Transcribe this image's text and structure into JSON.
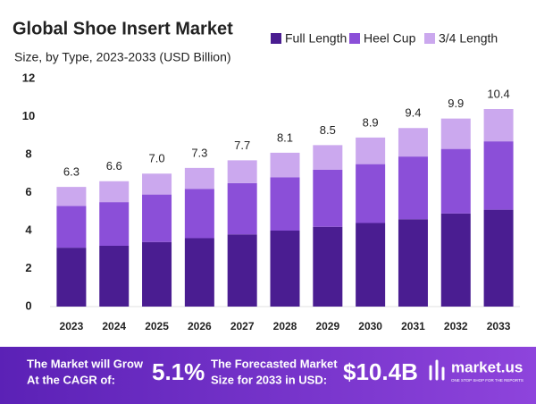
{
  "chart_data": {
    "type": "stacked_bar",
    "title": "Global Shoe Insert Market",
    "subtitle": "Size, by Type, 2023-2033 (USD Billion)",
    "categories": [
      "2023",
      "2024",
      "2025",
      "2026",
      "2027",
      "2028",
      "2029",
      "2030",
      "2031",
      "2032",
      "2033"
    ],
    "series": [
      {
        "name": "Full Length",
        "color": "#4a1d91",
        "values": [
          3.1,
          3.2,
          3.4,
          3.6,
          3.8,
          4.0,
          4.2,
          4.4,
          4.6,
          4.9,
          5.1
        ]
      },
      {
        "name": "Heel Cup",
        "color": "#8b4fd8",
        "values": [
          2.2,
          2.3,
          2.5,
          2.6,
          2.7,
          2.8,
          3.0,
          3.1,
          3.3,
          3.4,
          3.6
        ]
      },
      {
        "name": "3/4 Length",
        "color": "#cba8ee",
        "values": [
          1.0,
          1.1,
          1.1,
          1.1,
          1.2,
          1.3,
          1.3,
          1.4,
          1.5,
          1.6,
          1.7
        ]
      }
    ],
    "totals": [
      6.3,
      6.6,
      7.0,
      7.3,
      7.7,
      8.1,
      8.5,
      8.9,
      9.4,
      9.9,
      10.4
    ],
    "total_labels": [
      "6.3",
      "6.6",
      "7.0",
      "7.3",
      "7.7",
      "8.1",
      "8.5",
      "8.9",
      "9.4",
      "9.9",
      "10.4"
    ],
    "ylim": [
      0,
      12
    ],
    "yticks": [
      0,
      2,
      4,
      6,
      8,
      10,
      12
    ],
    "grid": false,
    "legend": "top-right"
  },
  "footer": {
    "cagr_text": [
      "The Market will Grow",
      "At the CAGR of:"
    ],
    "cagr_value": "5.1%",
    "forecast_text": [
      "The Forecasted Market",
      "Size for 2033 in USD:"
    ],
    "forecast_value": "$10.4B",
    "brand": "market.us",
    "tagline": "ONE STOP SHOP FOR THE REPORTS"
  }
}
